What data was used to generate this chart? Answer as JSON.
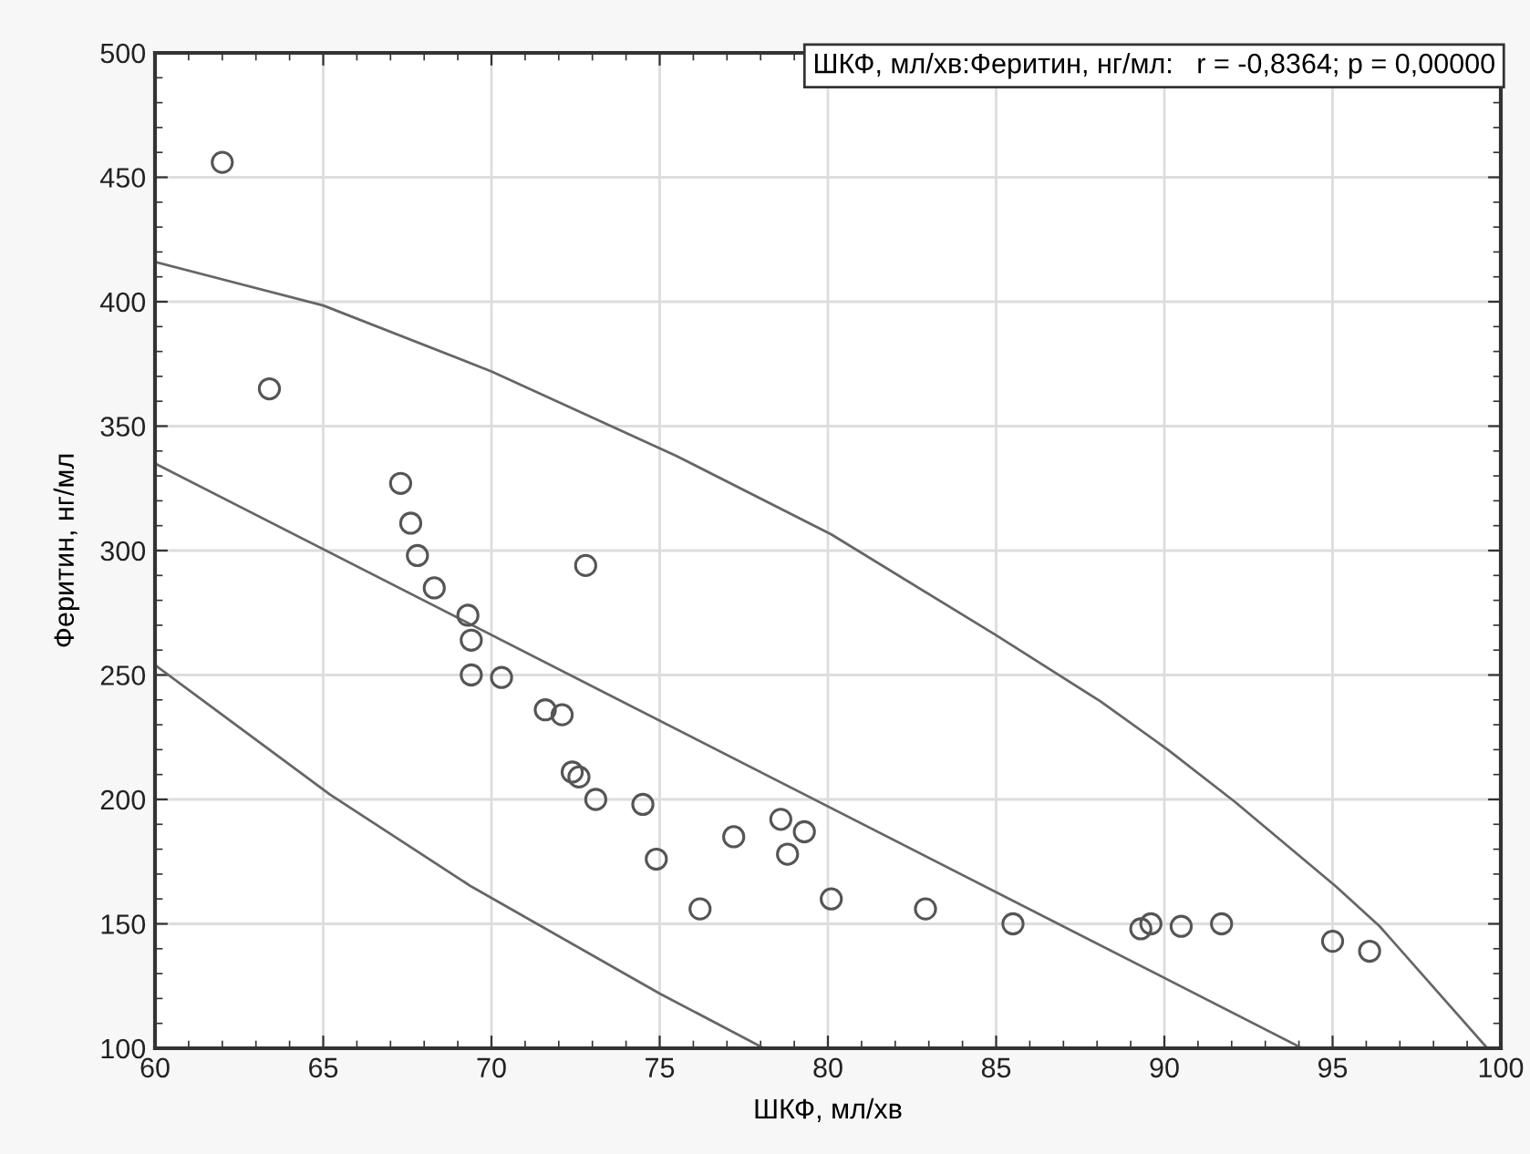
{
  "chart_data": {
    "type": "scatter",
    "xlabel": "ШКФ, мл/хв",
    "ylabel": "Феритин, нг/мл",
    "annotations": [
      "ШКФ, мл/хв:Феритин, нг/мл:   r = -0,8364; p = 0,00000"
    ],
    "xlim": [
      60,
      100
    ],
    "xticks": [
      60,
      65,
      70,
      75,
      80,
      85,
      90,
      95,
      100
    ],
    "ylim": [
      100,
      500
    ],
    "yticks": [
      100,
      150,
      200,
      250,
      300,
      350,
      400,
      450,
      500
    ],
    "grid": true,
    "marker": "circle",
    "series": [
      {
        "color": "#555555",
        "x": [
          62.0,
          63.4,
          67.3,
          67.6,
          67.8,
          72.8,
          68.3,
          69.3,
          69.4,
          69.4,
          70.3,
          71.6,
          72.1,
          72.4,
          72.6,
          73.1,
          74.5,
          74.9,
          76.2,
          77.2,
          78.6,
          78.8,
          79.3,
          80.1,
          82.9,
          85.5,
          89.3,
          89.6,
          90.5,
          91.7,
          95.0,
          96.1
        ],
        "values": [
          456,
          365,
          327,
          311,
          298,
          294,
          285,
          274,
          264,
          250,
          249,
          236,
          234,
          211,
          209,
          200,
          198,
          176,
          156,
          185,
          192,
          178,
          187,
          160,
          156,
          150,
          148,
          150,
          149,
          150,
          143,
          139
        ]
      },
      {
        "type": "line",
        "color": "#666666",
        "marker": "none",
        "x": [
          60,
          94.1
        ],
        "values": [
          335,
          100
        ]
      },
      {
        "type": "line",
        "color": "#666666",
        "marker": "none",
        "x": [
          60,
          65,
          70,
          75.5,
          80.1,
          85,
          88.1,
          90.1,
          92.1,
          95.1,
          96.4,
          99.6
        ],
        "values": [
          416,
          398.5,
          372,
          338,
          306.5,
          266,
          239.4,
          220,
          199,
          165,
          149,
          100
        ]
      },
      {
        "type": "line",
        "color": "#666666",
        "marker": "none",
        "x": [
          60,
          65.2,
          69.4,
          75,
          78.1
        ],
        "values": [
          254,
          202,
          165,
          122,
          100
        ]
      }
    ]
  }
}
